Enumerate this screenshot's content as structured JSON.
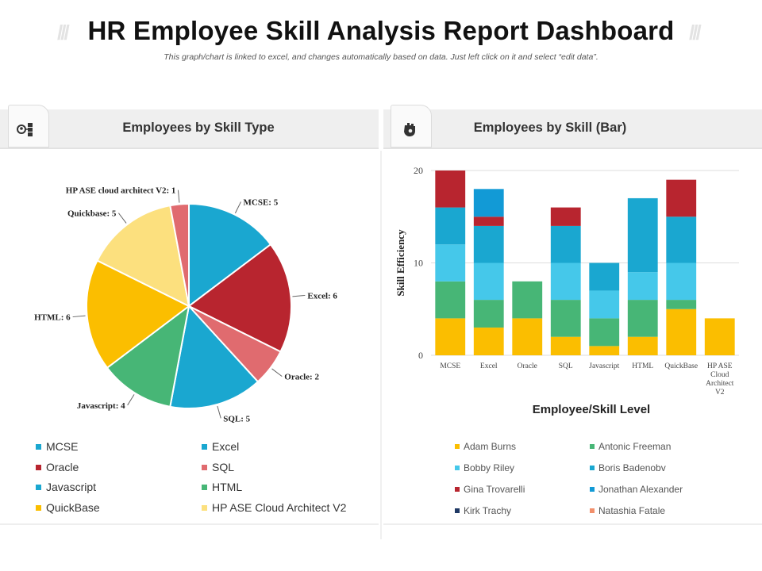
{
  "header": {
    "title": "HR Employee Skill Analysis Report Dashboard",
    "subtitle": "This graph/chart  is linked to excel, and changes automatically based on data. Just left click on it and select “edit data”.",
    "deco_left": "///",
    "deco_right": "///"
  },
  "panels": {
    "left_title": "Employees by Skill Type",
    "right_title": "Employees by Skill (Bar)",
    "left_icon": "people-org-icon",
    "right_icon": "hand-gear-icon"
  },
  "chart_data": [
    {
      "type": "pie",
      "title": "Employees by Skill Type",
      "slices": [
        {
          "name": "MCSE",
          "value": 5,
          "color": "#1aa7d0",
          "label": "MCSE: 5"
        },
        {
          "name": "Excel",
          "value": 6,
          "color": "#b8252f",
          "label": "Excel: 6"
        },
        {
          "name": "Oracle",
          "value": 2,
          "color": "#e06b6f",
          "label": "Oracle: 2"
        },
        {
          "name": "SQL",
          "value": 5,
          "color": "#1aa7d0",
          "label": "SQL: 5"
        },
        {
          "name": "Javascript",
          "value": 4,
          "color": "#47b676",
          "label": "Javascript:  4"
        },
        {
          "name": "HTML",
          "value": 6,
          "color": "#fbbe00",
          "label": "HTML: 6"
        },
        {
          "name": "Quickbase",
          "value": 5,
          "color": "#fce07e",
          "label": "Quickbase: 5"
        },
        {
          "name": "HP ASE cloud architect V2",
          "value": 1,
          "color": "#e06b6f",
          "label": "HP ASE cloud architect V2: 1"
        }
      ],
      "legend": [
        {
          "label": "MCSE",
          "color": "#1aa7d0"
        },
        {
          "label": "Excel",
          "color": "#1aa7d0"
        },
        {
          "label": "Oracle",
          "color": "#b8252f"
        },
        {
          "label": "SQL",
          "color": "#e06b6f"
        },
        {
          "label": "Javascript",
          "color": "#1aa7d0"
        },
        {
          "label": "HTML",
          "color": "#47b676"
        },
        {
          "label": "QuickBase",
          "color": "#fbbe00"
        },
        {
          "label": "HP ASE Cloud Architect V2",
          "color": "#fce07e"
        }
      ]
    },
    {
      "type": "bar",
      "stacked": true,
      "title": "Employees by Skill (Bar)",
      "xlabel": "Employee/Skill Level",
      "ylabel": "Skill Efficiency",
      "ylim": [
        0,
        20
      ],
      "yticks": [
        0,
        10,
        20
      ],
      "grid": true,
      "categories": [
        "MCSE",
        "Excel",
        "Oracle",
        "SQL",
        "Javascript",
        "HTML",
        "QuickBase",
        "HP ASE Cloud Architect V2"
      ],
      "series": [
        {
          "name": "Adam Burns",
          "color": "#fbbe00",
          "values": [
            4,
            3,
            4,
            2,
            1,
            2,
            5,
            4
          ]
        },
        {
          "name": "Antonic Freeman",
          "color": "#47b676",
          "values": [
            4,
            3,
            4,
            4,
            3,
            4,
            1,
            0
          ]
        },
        {
          "name": "Bobby Riley",
          "color": "#45c8ea",
          "values": [
            4,
            4,
            0,
            4,
            3,
            3,
            4,
            0
          ]
        },
        {
          "name": "Boris Badenobv",
          "color": "#1aa7d0",
          "values": [
            4,
            4,
            0,
            4,
            3,
            8,
            5,
            0
          ]
        },
        {
          "name": "Gina Trovarelli",
          "color": "#b8252f",
          "values": [
            4,
            1,
            0,
            2,
            0,
            0,
            4,
            0
          ]
        },
        {
          "name": "Jonathan Alexander",
          "color": "#129ad6",
          "values": [
            0,
            3,
            0,
            0,
            0,
            0,
            0,
            0
          ]
        },
        {
          "name": "Kirk Trachy",
          "color": "#1f3864",
          "values": [
            0,
            0,
            0,
            0,
            0,
            0,
            0,
            0
          ]
        },
        {
          "name": "Natashia Fatale",
          "color": "#f2906c",
          "values": [
            0,
            0,
            0,
            0,
            0,
            0,
            0,
            0
          ]
        }
      ]
    }
  ]
}
